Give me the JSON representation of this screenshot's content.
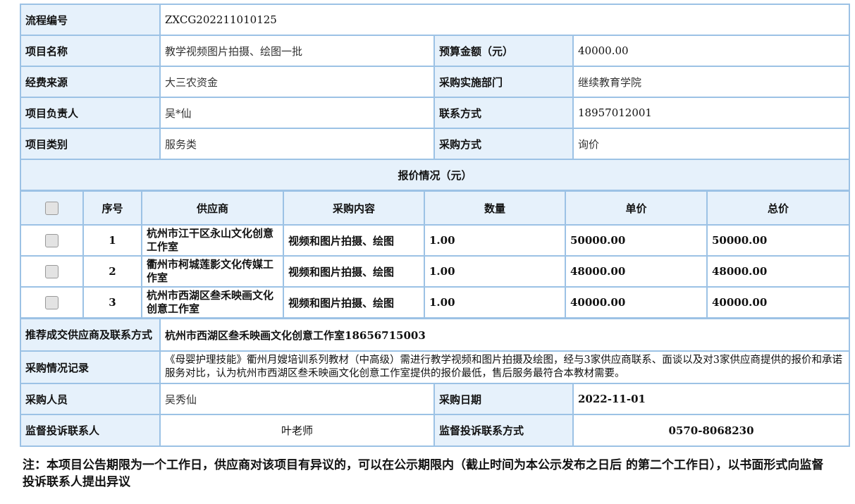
{
  "info": {
    "process_no_label": "流程编号",
    "process_no": "ZXCG202211010125",
    "project_name_label": "项目名称",
    "project_name": "教学视频图片拍摄、绘图一批",
    "budget_label": "预算金额（元）",
    "budget": "40000.00",
    "fund_source_label": "经费来源",
    "fund_source": "大三农资金",
    "dept_label": "采购实施部门",
    "dept": "继续教育学院",
    "owner_label": "项目负责人",
    "owner": "吴*仙",
    "contact_label": "联系方式",
    "contact": "18957012001",
    "category_label": "项目类别",
    "category": "服务类",
    "method_label": "采购方式",
    "method": "询价",
    "quote_title": "报价情况（元）"
  },
  "quotes": {
    "headers": [
      "序号",
      "供应商",
      "采购内容",
      "数量",
      "单价",
      "总价"
    ],
    "rows": [
      {
        "seq": "1",
        "supplier": "杭州市江干区永山文化创意工作室",
        "content": "视频和图片拍摄、绘图",
        "qty": "1.00",
        "price": "50000.00",
        "total": "50000.00"
      },
      {
        "seq": "2",
        "supplier": "衢州市柯城莲影文化传媒工作室",
        "content": "视频和图片拍摄、绘图",
        "qty": "1.00",
        "price": "48000.00",
        "total": "48000.00"
      },
      {
        "seq": "3",
        "supplier": "杭州市西湖区叁禾映画文化创意工作室",
        "content": "视频和图片拍摄、绘图",
        "qty": "1.00",
        "price": "40000.00",
        "total": "40000.00"
      }
    ]
  },
  "result": {
    "recommend_label": "推荐成交供应商及联系方式",
    "recommend": "杭州市西湖区叁禾映画文化创意工作室18656715003",
    "record_label": "采购情况记录",
    "record": "《母婴护理技能》衢州月嫂培训系列教材（中高级）需进行教学视频和图片拍摄及绘图，经与3家供应商联系、面谈以及对3家供应商提供的报价和承诺服务对比，认为杭州市西湖区叁禾映画文化创意工作室提供的报价最低，售后服务最符合本教材需要。",
    "buyer_label": "采购人员",
    "buyer": "吴秀仙",
    "date_label": "采购日期",
    "date": "2022-11-01",
    "supervisor_label": "监督投诉联系人",
    "supervisor": "叶老师",
    "supervisor_contact_label": "监督投诉联系方式",
    "supervisor_contact": "0570-8068230"
  },
  "note": "注：本项目公告期限为一个工作日，供应商对该项目有异议的，可以在公示期限内（截止时间为本公示发布之日后 的第二个工作日），以书面形式向监督投诉联系人提出异议"
}
